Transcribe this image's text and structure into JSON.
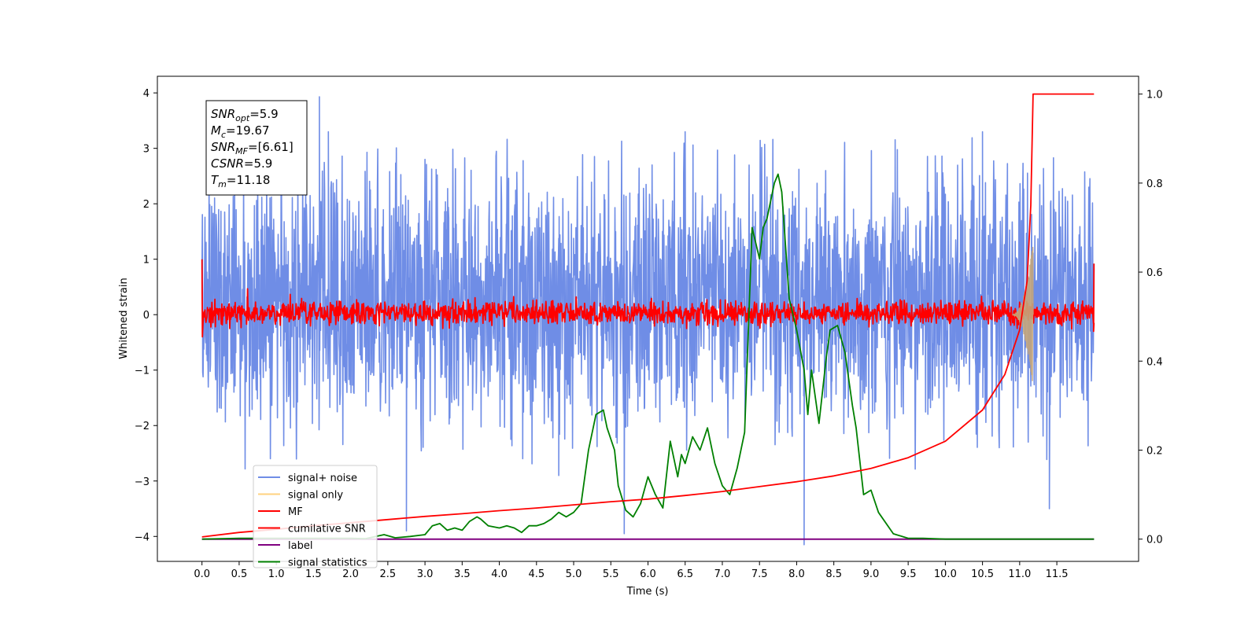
{
  "chart_data": {
    "type": "line",
    "xlabel": "Time (s)",
    "ylabel": "Whitened strain",
    "xlim": [
      -0.6,
      12.6
    ],
    "ylim": [
      -4.45,
      4.3
    ],
    "y2lim": [
      -0.05,
      1.04
    ],
    "x_ticks": [
      "0.0",
      "0.5",
      "1.0",
      "1.5",
      "2.0",
      "2.5",
      "3.0",
      "3.5",
      "4.0",
      "4.5",
      "5.0",
      "5.5",
      "6.0",
      "6.5",
      "7.0",
      "7.5",
      "8.0",
      "8.5",
      "9.0",
      "9.5",
      "10.0",
      "10.5",
      "11.0",
      "11.5"
    ],
    "y_ticks": [
      "−4",
      "−3",
      "−2",
      "−1",
      "0",
      "1",
      "2",
      "3",
      "4"
    ],
    "y2_ticks": [
      "0.0",
      "0.2",
      "0.4",
      "0.6",
      "0.8",
      "1.0"
    ],
    "annotation": {
      "lines": [
        {
          "var": "SNR",
          "sub": "opt",
          "rest": "=5.9"
        },
        {
          "var": "M",
          "sub": "c",
          "rest": "=19.67"
        },
        {
          "var": "SNR",
          "sub": "MF",
          "rest": "=[6.61]"
        },
        {
          "var": "CSNR",
          "sub": "",
          "rest": "=5.9"
        },
        {
          "var": "T",
          "sub": "m",
          "rest": "=11.18"
        }
      ]
    },
    "legend": {
      "placement": "lower-left",
      "entries": [
        {
          "label": "signal+ noise",
          "color": "#6f8de6"
        },
        {
          "label": "signal only",
          "color": "#ffd27f"
        },
        {
          "label": "MF",
          "color": "#ff0000"
        },
        {
          "label": "cumilative SNR",
          "color": "#ff0000"
        },
        {
          "label": "label",
          "color": "#800080"
        },
        {
          "label": "signal statistics",
          "color": "#008000"
        }
      ]
    },
    "series": [
      {
        "name": "signal+ noise",
        "axis": "left",
        "color": "#6f8de6",
        "style": "noise band",
        "x_range": [
          0.0,
          12.0
        ],
        "typical_range": [
          -2.3,
          2.8
        ],
        "spikes": [
          [
            1.58,
            3.93
          ],
          [
            2.75,
            -3.9
          ],
          [
            4.8,
            -2.9
          ],
          [
            5.68,
            -3.95
          ],
          [
            8.1,
            -4.15
          ],
          [
            11.4,
            -3.5
          ],
          [
            1.7,
            3.3
          ],
          [
            6.5,
            3.3
          ],
          [
            10.5,
            3.3
          ]
        ]
      },
      {
        "name": "MF",
        "axis": "left",
        "color": "#ff0000",
        "style": "noise band",
        "x_range": [
          0.0,
          12.0
        ],
        "typical_range": [
          -0.2,
          0.25
        ],
        "endpoints": [
          [
            0.0,
            1.0
          ],
          [
            12.0,
            0.92
          ]
        ]
      },
      {
        "name": "signal only",
        "axis": "left",
        "color": "#c4a57a",
        "style": "chirp",
        "chirp": {
          "start": 10.9,
          "end": 11.18,
          "peak_amplitude": 1.3
        }
      },
      {
        "name": "cumilative SNR",
        "axis": "right",
        "color": "#ff0000",
        "x": [
          0.0,
          0.5,
          1.0,
          1.5,
          2.0,
          2.5,
          3.0,
          3.5,
          4.0,
          4.5,
          5.0,
          5.5,
          6.0,
          6.5,
          7.0,
          7.5,
          8.0,
          8.5,
          9.0,
          9.5,
          10.0,
          10.5,
          10.8,
          11.0,
          11.1,
          11.15,
          11.18,
          12.0
        ],
        "values": [
          0.005,
          0.015,
          0.022,
          0.03,
          0.037,
          0.044,
          0.051,
          0.057,
          0.064,
          0.07,
          0.077,
          0.084,
          0.09,
          0.098,
          0.107,
          0.118,
          0.129,
          0.142,
          0.159,
          0.183,
          0.22,
          0.29,
          0.37,
          0.47,
          0.58,
          0.75,
          1.0,
          1.0
        ]
      },
      {
        "name": "label",
        "axis": "right",
        "color": "#800080",
        "x": [
          0.0,
          12.0
        ],
        "values": [
          0.0,
          0.0
        ]
      },
      {
        "name": "signal statistics",
        "axis": "right",
        "color": "#008000",
        "x": [
          0.0,
          0.5,
          1.0,
          1.5,
          2.0,
          2.2,
          2.45,
          2.6,
          2.8,
          3.0,
          3.1,
          3.2,
          3.3,
          3.4,
          3.5,
          3.6,
          3.7,
          3.75,
          3.85,
          4.0,
          4.1,
          4.2,
          4.3,
          4.4,
          4.5,
          4.6,
          4.7,
          4.8,
          4.9,
          5.0,
          5.1,
          5.2,
          5.3,
          5.4,
          5.45,
          5.55,
          5.6,
          5.7,
          5.8,
          5.9,
          6.0,
          6.1,
          6.2,
          6.3,
          6.4,
          6.45,
          6.5,
          6.6,
          6.7,
          6.8,
          6.9,
          7.0,
          7.1,
          7.2,
          7.3,
          7.4,
          7.5,
          7.55,
          7.6,
          7.7,
          7.75,
          7.8,
          7.9,
          8.0,
          8.1,
          8.15,
          8.2,
          8.3,
          8.4,
          8.45,
          8.55,
          8.65,
          8.75,
          8.8,
          8.9,
          9.0,
          9.1,
          9.3,
          9.5,
          9.7,
          10.0,
          11.0,
          12.0
        ],
        "values": [
          0.0,
          0.002,
          0.002,
          0.002,
          0.002,
          0.001,
          0.01,
          0.003,
          0.006,
          0.01,
          0.03,
          0.035,
          0.02,
          0.025,
          0.02,
          0.04,
          0.05,
          0.045,
          0.03,
          0.025,
          0.03,
          0.025,
          0.015,
          0.03,
          0.03,
          0.035,
          0.045,
          0.06,
          0.05,
          0.06,
          0.08,
          0.2,
          0.28,
          0.29,
          0.25,
          0.2,
          0.12,
          0.065,
          0.05,
          0.08,
          0.14,
          0.1,
          0.07,
          0.22,
          0.14,
          0.19,
          0.17,
          0.23,
          0.2,
          0.25,
          0.17,
          0.12,
          0.1,
          0.16,
          0.24,
          0.7,
          0.63,
          0.7,
          0.72,
          0.8,
          0.82,
          0.78,
          0.54,
          0.47,
          0.38,
          0.28,
          0.38,
          0.26,
          0.41,
          0.47,
          0.48,
          0.42,
          0.3,
          0.25,
          0.1,
          0.11,
          0.06,
          0.012,
          0.002,
          0.002,
          0.0,
          0.0,
          0.0
        ]
      }
    ]
  }
}
